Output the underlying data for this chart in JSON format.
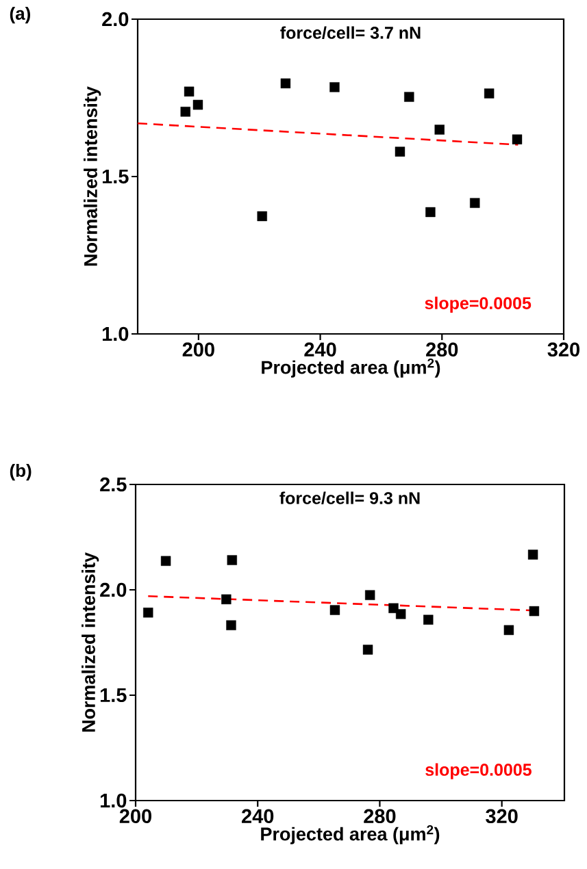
{
  "chart_data": [
    {
      "type": "scatter",
      "title": "(a)",
      "xlabel": "Projected area (μm$^{2}$)",
      "ylabel": "Normalized intensity",
      "annotations": [
        "force/cell= 3.7 nN",
        "slope=0.0005"
      ],
      "xlim": [
        180,
        320
      ],
      "xticks": [
        200,
        240,
        280,
        320
      ],
      "ylim": [
        1.0,
        2.0
      ],
      "yticks": [
        {
          "value": 1.0,
          "label": "1.0"
        },
        {
          "value": 1.5,
          "label": "1.5"
        },
        {
          "value": 2.0,
          "label": "2.0"
        }
      ],
      "series": [
        {
          "color": "#000000",
          "marker": "square",
          "x": [
            195.7,
            196.9,
            199.8,
            220.9,
            228.6,
            244.7,
            266.2,
            269.2,
            276.2,
            279.2,
            290.8,
            295.5,
            304.7
          ],
          "values": [
            1.706,
            1.77,
            1.728,
            1.374,
            1.796,
            1.784,
            1.579,
            1.753,
            1.387,
            1.649,
            1.416,
            1.764,
            1.618
          ]
        },
        {
          "type": "line",
          "color": "#ff0000",
          "line_style": "dashed",
          "marker": "none",
          "x": [
            180,
            305
          ],
          "values": [
            1.669,
            1.601
          ]
        }
      ]
    },
    {
      "type": "scatter",
      "title": "(b)",
      "xlabel": "Projected area (μm$^{2}$)",
      "ylabel": "Normalized intensity",
      "annotations": [
        "force/cell= 9.3 nN",
        "slope=0.0005"
      ],
      "xlim": [
        200,
        340.5
      ],
      "xticks": [
        200,
        240,
        280,
        320
      ],
      "ylim": [
        1.0,
        2.5
      ],
      "yticks": [
        {
          "value": 1.0,
          "label": "1.0"
        },
        {
          "value": 1.5,
          "label": "1.5"
        },
        {
          "value": 2.0,
          "label": "2.0"
        },
        {
          "value": 2.5,
          "label": "2.5"
        }
      ],
      "series": [
        {
          "color": "#000000",
          "marker": "square",
          "x": [
            204.1,
            209.9,
            229.7,
            231.3,
            231.6,
            265.3,
            276.1,
            276.8,
            284.5,
            286.9,
            295.9,
            322.3,
            330.2,
            330.6
          ],
          "values": [
            1.892,
            2.137,
            1.955,
            1.832,
            2.141,
            1.904,
            1.716,
            1.975,
            1.913,
            1.885,
            1.858,
            1.809,
            2.167,
            1.899
          ]
        },
        {
          "type": "line",
          "color": "#ff0000",
          "line_style": "dashed",
          "marker": "none",
          "x": [
            204.1,
            330.6
          ],
          "values": [
            1.97,
            1.902
          ]
        }
      ]
    }
  ]
}
